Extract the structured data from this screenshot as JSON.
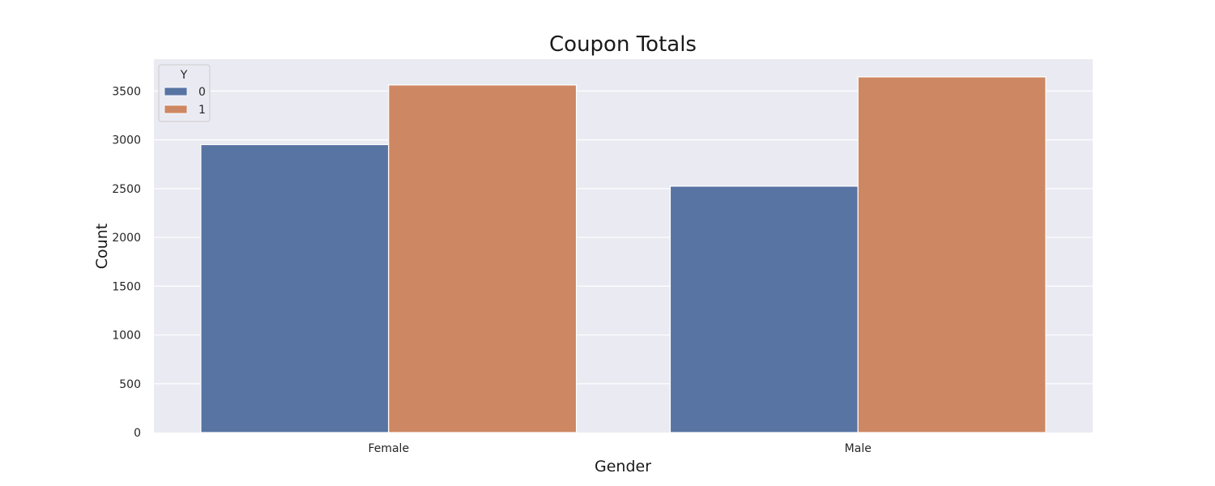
{
  "chart_data": {
    "type": "bar",
    "title": "Coupon Totals",
    "xlabel": "Gender",
    "ylabel": "Count",
    "categories": [
      "Female",
      "Male"
    ],
    "series": [
      {
        "name": "0",
        "values": [
          2951,
          2525
        ],
        "color": "#5874a3"
      },
      {
        "name": "1",
        "values": [
          3562,
          3645
        ],
        "color": "#cd8762"
      }
    ],
    "legend_title": "Y",
    "legend_position": "top-left",
    "ylim": [
      0,
      3827
    ],
    "yticks": [
      0,
      500,
      1000,
      1500,
      2000,
      2500,
      3000,
      3500
    ],
    "grid": true,
    "background_color": "#eaeaf2"
  }
}
